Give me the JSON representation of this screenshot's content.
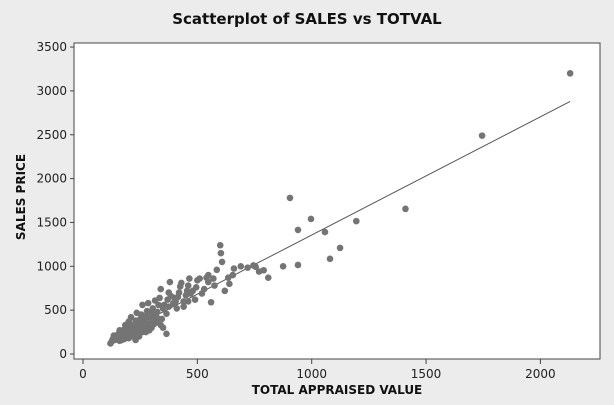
{
  "chart_data": {
    "type": "scatter",
    "title": "Scatterplot of SALES vs TOTVAL",
    "xlabel": "TOTAL APPRAISED VALUE",
    "ylabel": "SALES PRICE",
    "xlim": [
      -40,
      2300
    ],
    "ylim": [
      -80,
      3550
    ],
    "xticks": [
      0,
      500,
      1000,
      1500,
      2000
    ],
    "yticks": [
      0,
      500,
      1000,
      1500,
      2000,
      2500,
      3000,
      3500
    ],
    "grid": false,
    "legend": null,
    "marker_color": "#747474",
    "line_color": "#555555",
    "background_color": "#ececec",
    "plot_background": "#ffffff",
    "fit_line": {
      "type": "linear",
      "x": [
        120,
        2130
      ],
      "y": [
        170,
        2880
      ]
    },
    "points": [
      {
        "x": 2130,
        "y": 3200
      },
      {
        "x": 1745,
        "y": 2490
      },
      {
        "x": 1410,
        "y": 1655
      },
      {
        "x": 905,
        "y": 1780
      },
      {
        "x": 997,
        "y": 1540
      },
      {
        "x": 1195,
        "y": 1515
      },
      {
        "x": 940,
        "y": 1415
      },
      {
        "x": 1058,
        "y": 1390
      },
      {
        "x": 1124,
        "y": 1210
      },
      {
        "x": 1080,
        "y": 1085
      },
      {
        "x": 940,
        "y": 1015
      },
      {
        "x": 875,
        "y": 1000
      },
      {
        "x": 790,
        "y": 955
      },
      {
        "x": 755,
        "y": 995
      },
      {
        "x": 770,
        "y": 940
      },
      {
        "x": 810,
        "y": 870
      },
      {
        "x": 745,
        "y": 1010
      },
      {
        "x": 720,
        "y": 985
      },
      {
        "x": 690,
        "y": 1000
      },
      {
        "x": 660,
        "y": 975
      },
      {
        "x": 655,
        "y": 900
      },
      {
        "x": 635,
        "y": 870
      },
      {
        "x": 608,
        "y": 1050
      },
      {
        "x": 603,
        "y": 1150
      },
      {
        "x": 600,
        "y": 1240
      },
      {
        "x": 585,
        "y": 960
      },
      {
        "x": 575,
        "y": 780
      },
      {
        "x": 570,
        "y": 860
      },
      {
        "x": 548,
        "y": 900
      },
      {
        "x": 540,
        "y": 870
      },
      {
        "x": 548,
        "y": 820
      },
      {
        "x": 530,
        "y": 740
      },
      {
        "x": 520,
        "y": 690
      },
      {
        "x": 500,
        "y": 840
      },
      {
        "x": 495,
        "y": 760
      },
      {
        "x": 480,
        "y": 720
      },
      {
        "x": 470,
        "y": 690
      },
      {
        "x": 465,
        "y": 860
      },
      {
        "x": 460,
        "y": 780
      },
      {
        "x": 455,
        "y": 720
      },
      {
        "x": 450,
        "y": 670
      },
      {
        "x": 440,
        "y": 600
      },
      {
        "x": 430,
        "y": 810
      },
      {
        "x": 425,
        "y": 770
      },
      {
        "x": 420,
        "y": 700
      },
      {
        "x": 410,
        "y": 520
      },
      {
        "x": 400,
        "y": 640
      },
      {
        "x": 395,
        "y": 580
      },
      {
        "x": 380,
        "y": 820
      },
      {
        "x": 375,
        "y": 700
      },
      {
        "x": 370,
        "y": 620
      },
      {
        "x": 365,
        "y": 460
      },
      {
        "x": 355,
        "y": 560
      },
      {
        "x": 350,
        "y": 520
      },
      {
        "x": 345,
        "y": 400
      },
      {
        "x": 340,
        "y": 740
      },
      {
        "x": 335,
        "y": 640
      },
      {
        "x": 330,
        "y": 560
      },
      {
        "x": 325,
        "y": 480
      },
      {
        "x": 320,
        "y": 430
      },
      {
        "x": 315,
        "y": 610
      },
      {
        "x": 312,
        "y": 380
      },
      {
        "x": 305,
        "y": 520
      },
      {
        "x": 300,
        "y": 470
      },
      {
        "x": 295,
        "y": 420
      },
      {
        "x": 290,
        "y": 350
      },
      {
        "x": 285,
        "y": 580
      },
      {
        "x": 280,
        "y": 490
      },
      {
        "x": 275,
        "y": 430
      },
      {
        "x": 270,
        "y": 380
      },
      {
        "x": 265,
        "y": 330
      },
      {
        "x": 260,
        "y": 560
      },
      {
        "x": 255,
        "y": 450
      },
      {
        "x": 250,
        "y": 400
      },
      {
        "x": 245,
        "y": 350
      },
      {
        "x": 240,
        "y": 300
      },
      {
        "x": 235,
        "y": 470
      },
      {
        "x": 230,
        "y": 380
      },
      {
        "x": 225,
        "y": 330
      },
      {
        "x": 220,
        "y": 290
      },
      {
        "x": 215,
        "y": 260
      },
      {
        "x": 210,
        "y": 420
      },
      {
        "x": 205,
        "y": 340
      },
      {
        "x": 200,
        "y": 300
      },
      {
        "x": 195,
        "y": 270
      },
      {
        "x": 190,
        "y": 230
      },
      {
        "x": 185,
        "y": 330
      },
      {
        "x": 180,
        "y": 280
      },
      {
        "x": 175,
        "y": 250
      },
      {
        "x": 170,
        "y": 220
      },
      {
        "x": 165,
        "y": 190
      },
      {
        "x": 160,
        "y": 270
      },
      {
        "x": 155,
        "y": 230
      },
      {
        "x": 150,
        "y": 200
      },
      {
        "x": 145,
        "y": 180
      },
      {
        "x": 140,
        "y": 160
      },
      {
        "x": 135,
        "y": 210
      },
      {
        "x": 130,
        "y": 170
      },
      {
        "x": 125,
        "y": 140
      },
      {
        "x": 120,
        "y": 120
      },
      {
        "x": 310,
        "y": 340
      },
      {
        "x": 300,
        "y": 300
      },
      {
        "x": 290,
        "y": 270
      },
      {
        "x": 280,
        "y": 320
      },
      {
        "x": 270,
        "y": 290
      },
      {
        "x": 260,
        "y": 250
      },
      {
        "x": 250,
        "y": 270
      },
      {
        "x": 240,
        "y": 240
      },
      {
        "x": 230,
        "y": 210
      },
      {
        "x": 220,
        "y": 230
      },
      {
        "x": 210,
        "y": 200
      },
      {
        "x": 200,
        "y": 180
      },
      {
        "x": 190,
        "y": 190
      },
      {
        "x": 180,
        "y": 170
      },
      {
        "x": 170,
        "y": 160
      },
      {
        "x": 160,
        "y": 150
      },
      {
        "x": 230,
        "y": 160
      },
      {
        "x": 320,
        "y": 360
      },
      {
        "x": 330,
        "y": 400
      },
      {
        "x": 340,
        "y": 330
      },
      {
        "x": 350,
        "y": 300
      },
      {
        "x": 200,
        "y": 370
      },
      {
        "x": 215,
        "y": 310
      },
      {
        "x": 245,
        "y": 200
      },
      {
        "x": 265,
        "y": 380
      },
      {
        "x": 275,
        "y": 250
      },
      {
        "x": 375,
        "y": 540
      },
      {
        "x": 385,
        "y": 660
      },
      {
        "x": 405,
        "y": 600
      },
      {
        "x": 415,
        "y": 650
      },
      {
        "x": 440,
        "y": 540
      },
      {
        "x": 460,
        "y": 600
      },
      {
        "x": 365,
        "y": 230
      },
      {
        "x": 510,
        "y": 860
      },
      {
        "x": 490,
        "y": 620
      },
      {
        "x": 560,
        "y": 590
      },
      {
        "x": 620,
        "y": 720
      },
      {
        "x": 640,
        "y": 800
      }
    ]
  }
}
